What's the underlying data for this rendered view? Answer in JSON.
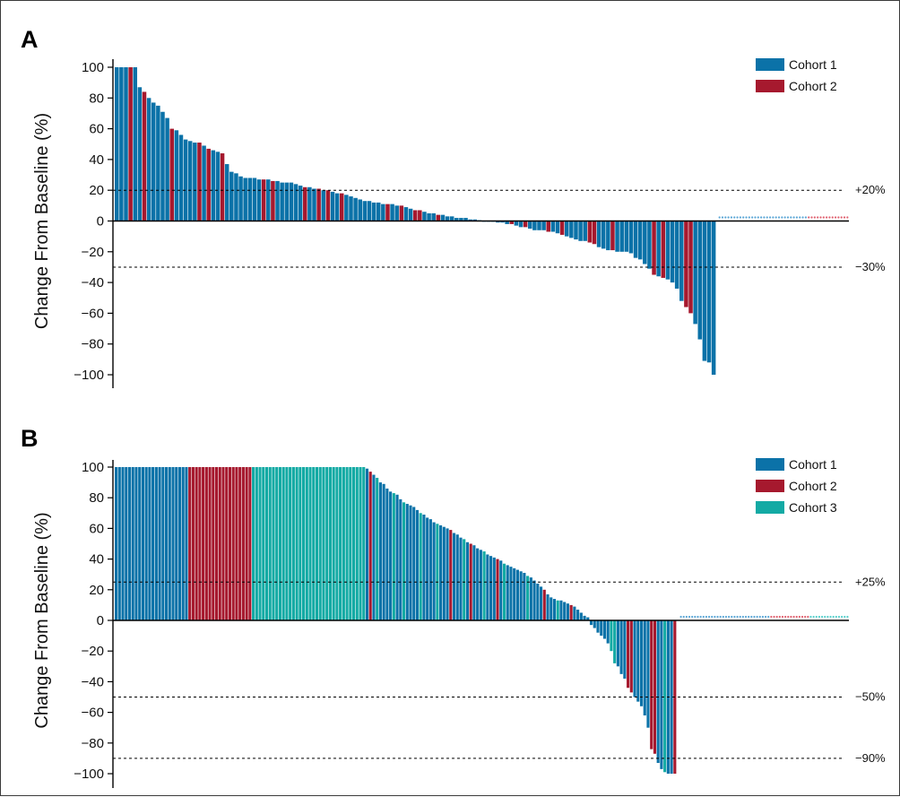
{
  "colors": {
    "cohort1": "#0b72a8",
    "cohort2": "#a6192e",
    "cohort3": "#13aaa4",
    "axis": "#000000",
    "reference": "#000000"
  },
  "chart_data": [
    {
      "type": "bar",
      "panel_label": "A",
      "ylabel": "Change From Baseline (%)",
      "ylim": [
        -100,
        100
      ],
      "yticks": [
        "100",
        "80",
        "60",
        "40",
        "20",
        "0",
        "−20",
        "−40",
        "−60",
        "−80",
        "−100"
      ],
      "reference_lines": [
        {
          "label": "+20%",
          "value": 20
        },
        {
          "label": "−30%",
          "value": -30
        }
      ],
      "legend": {
        "placement": "top-right",
        "entries": [
          "Cohort 1",
          "Cohort 2"
        ]
      },
      "series": [
        {
          "name": "Cohort 1",
          "color_key": "cohort1"
        },
        {
          "name": "Cohort 2",
          "color_key": "cohort2"
        }
      ],
      "bars": [
        [
          100,
          1
        ],
        [
          100,
          1
        ],
        [
          100,
          1
        ],
        [
          100,
          2
        ],
        [
          100,
          1
        ],
        [
          87,
          1
        ],
        [
          84,
          2
        ],
        [
          80,
          1
        ],
        [
          77,
          1
        ],
        [
          75,
          1
        ],
        [
          71,
          1
        ],
        [
          67,
          1
        ],
        [
          60,
          2
        ],
        [
          59,
          1
        ],
        [
          56,
          1
        ],
        [
          53,
          1
        ],
        [
          52,
          1
        ],
        [
          51,
          1
        ],
        [
          51,
          2
        ],
        [
          49,
          1
        ],
        [
          47,
          2
        ],
        [
          46,
          1
        ],
        [
          45,
          1
        ],
        [
          44,
          2
        ],
        [
          37,
          1
        ],
        [
          32,
          1
        ],
        [
          31,
          1
        ],
        [
          29,
          1
        ],
        [
          28,
          1
        ],
        [
          28,
          1
        ],
        [
          28,
          1
        ],
        [
          27,
          1
        ],
        [
          27,
          2
        ],
        [
          27,
          1
        ],
        [
          26,
          2
        ],
        [
          26,
          1
        ],
        [
          25,
          1
        ],
        [
          25,
          1
        ],
        [
          25,
          1
        ],
        [
          24,
          1
        ],
        [
          23,
          1
        ],
        [
          22,
          2
        ],
        [
          22,
          1
        ],
        [
          21,
          1
        ],
        [
          21,
          2
        ],
        [
          20,
          1
        ],
        [
          20,
          2
        ],
        [
          19,
          1
        ],
        [
          18,
          1
        ],
        [
          18,
          2
        ],
        [
          17,
          1
        ],
        [
          16,
          1
        ],
        [
          15,
          1
        ],
        [
          14,
          1
        ],
        [
          13,
          1
        ],
        [
          13,
          1
        ],
        [
          12,
          1
        ],
        [
          12,
          1
        ],
        [
          11,
          1
        ],
        [
          11,
          2
        ],
        [
          11,
          1
        ],
        [
          10,
          1
        ],
        [
          10,
          2
        ],
        [
          9,
          1
        ],
        [
          8,
          1
        ],
        [
          7,
          2
        ],
        [
          7,
          2
        ],
        [
          6,
          1
        ],
        [
          5,
          1
        ],
        [
          5,
          1
        ],
        [
          4,
          2
        ],
        [
          4,
          1
        ],
        [
          3,
          1
        ],
        [
          3,
          1
        ],
        [
          2,
          1
        ],
        [
          2,
          1
        ],
        [
          2,
          1
        ],
        [
          1,
          1
        ],
        [
          1,
          1
        ],
        [
          0.5,
          1
        ],
        [
          0,
          1
        ],
        [
          0,
          1
        ],
        [
          -0.5,
          1
        ],
        [
          -1,
          1
        ],
        [
          -1,
          1
        ],
        [
          -2,
          1
        ],
        [
          -2,
          2
        ],
        [
          -3,
          1
        ],
        [
          -4,
          1
        ],
        [
          -4,
          2
        ],
        [
          -5,
          1
        ],
        [
          -6,
          1
        ],
        [
          -6,
          1
        ],
        [
          -6,
          1
        ],
        [
          -7,
          2
        ],
        [
          -7,
          1
        ],
        [
          -8,
          1
        ],
        [
          -9,
          2
        ],
        [
          -10,
          1
        ],
        [
          -11,
          1
        ],
        [
          -12,
          1
        ],
        [
          -13,
          1
        ],
        [
          -13,
          1
        ],
        [
          -14,
          2
        ],
        [
          -15,
          2
        ],
        [
          -17,
          1
        ],
        [
          -18,
          1
        ],
        [
          -19,
          1
        ],
        [
          -19,
          2
        ],
        [
          -20,
          1
        ],
        [
          -20,
          1
        ],
        [
          -20,
          1
        ],
        [
          -21,
          1
        ],
        [
          -24,
          1
        ],
        [
          -25,
          1
        ],
        [
          -28,
          1
        ],
        [
          -31,
          1
        ],
        [
          -35,
          2
        ],
        [
          -36,
          1
        ],
        [
          -37,
          2
        ],
        [
          -38,
          1
        ],
        [
          -40,
          1
        ],
        [
          -44,
          1
        ],
        [
          -52,
          1
        ],
        [
          -56,
          2
        ],
        [
          -60,
          2
        ],
        [
          -67,
          1
        ],
        [
          -77,
          1
        ],
        [
          -91,
          1
        ],
        [
          -92,
          1
        ],
        [
          -100,
          1
        ]
      ],
      "unevaluable": {
        "cohort1_count": 30,
        "cohort2_count": 14
      }
    },
    {
      "type": "bar",
      "panel_label": "B",
      "ylabel": "Change From Baseline (%)",
      "ylim": [
        -100,
        100
      ],
      "yticks": [
        "100",
        "80",
        "60",
        "40",
        "20",
        "0",
        "−20",
        "−40",
        "−60",
        "−80",
        "−100"
      ],
      "reference_lines": [
        {
          "label": "+25%",
          "value": 25
        },
        {
          "label": "−50%",
          "value": -50
        },
        {
          "label": "−90%",
          "value": -90
        }
      ],
      "legend": {
        "placement": "top-right",
        "entries": [
          "Cohort 1",
          "Cohort 2",
          "Cohort 3"
        ]
      },
      "series": [
        {
          "name": "Cohort 1",
          "color_key": "cohort1"
        },
        {
          "name": "Cohort 2",
          "color_key": "cohort2"
        },
        {
          "name": "Cohort 3",
          "color_key": "cohort3"
        }
      ],
      "bars": [
        [
          100,
          1
        ],
        [
          100,
          1
        ],
        [
          100,
          1
        ],
        [
          100,
          1
        ],
        [
          100,
          1
        ],
        [
          100,
          1
        ],
        [
          100,
          1
        ],
        [
          100,
          1
        ],
        [
          100,
          1
        ],
        [
          100,
          1
        ],
        [
          100,
          1
        ],
        [
          100,
          1
        ],
        [
          100,
          1
        ],
        [
          100,
          1
        ],
        [
          100,
          1
        ],
        [
          100,
          1
        ],
        [
          100,
          1
        ],
        [
          100,
          1
        ],
        [
          100,
          1
        ],
        [
          100,
          1
        ],
        [
          100,
          1
        ],
        [
          100,
          1
        ],
        [
          100,
          2
        ],
        [
          100,
          2
        ],
        [
          100,
          2
        ],
        [
          100,
          2
        ],
        [
          100,
          2
        ],
        [
          100,
          2
        ],
        [
          100,
          2
        ],
        [
          100,
          2
        ],
        [
          100,
          2
        ],
        [
          100,
          2
        ],
        [
          100,
          2
        ],
        [
          100,
          2
        ],
        [
          100,
          2
        ],
        [
          100,
          2
        ],
        [
          100,
          2
        ],
        [
          100,
          2
        ],
        [
          100,
          2
        ],
        [
          100,
          2
        ],
        [
          100,
          2
        ],
        [
          100,
          3
        ],
        [
          100,
          3
        ],
        [
          100,
          3
        ],
        [
          100,
          3
        ],
        [
          100,
          3
        ],
        [
          100,
          3
        ],
        [
          100,
          3
        ],
        [
          100,
          3
        ],
        [
          100,
          3
        ],
        [
          100,
          3
        ],
        [
          100,
          3
        ],
        [
          100,
          3
        ],
        [
          100,
          3
        ],
        [
          100,
          3
        ],
        [
          100,
          3
        ],
        [
          100,
          3
        ],
        [
          100,
          3
        ],
        [
          100,
          3
        ],
        [
          100,
          3
        ],
        [
          100,
          3
        ],
        [
          100,
          3
        ],
        [
          100,
          3
        ],
        [
          100,
          3
        ],
        [
          100,
          3
        ],
        [
          100,
          3
        ],
        [
          100,
          3
        ],
        [
          100,
          3
        ],
        [
          100,
          3
        ],
        [
          100,
          3
        ],
        [
          100,
          3
        ],
        [
          100,
          3
        ],
        [
          100,
          3
        ],
        [
          100,
          3
        ],
        [
          100,
          3
        ],
        [
          99,
          1
        ],
        [
          97,
          2
        ],
        [
          95,
          1
        ],
        [
          93,
          3
        ],
        [
          90,
          1
        ],
        [
          89,
          1
        ],
        [
          86,
          1
        ],
        [
          84,
          1
        ],
        [
          83,
          3
        ],
        [
          82,
          1
        ],
        [
          79,
          1
        ],
        [
          77,
          3
        ],
        [
          76,
          1
        ],
        [
          75,
          1
        ],
        [
          74,
          1
        ],
        [
          72,
          1
        ],
        [
          70,
          3
        ],
        [
          69,
          1
        ],
        [
          67,
          1
        ],
        [
          66,
          1
        ],
        [
          64,
          1
        ],
        [
          63,
          3
        ],
        [
          62,
          1
        ],
        [
          61,
          1
        ],
        [
          60,
          1
        ],
        [
          59,
          2
        ],
        [
          57,
          1
        ],
        [
          56,
          1
        ],
        [
          54,
          1
        ],
        [
          53,
          3
        ],
        [
          51,
          1
        ],
        [
          50,
          2
        ],
        [
          49,
          1
        ],
        [
          47,
          1
        ],
        [
          46,
          1
        ],
        [
          45,
          3
        ],
        [
          43,
          1
        ],
        [
          42,
          1
        ],
        [
          41,
          1
        ],
        [
          40,
          2
        ],
        [
          39,
          1
        ],
        [
          37,
          3
        ],
        [
          36,
          1
        ],
        [
          35,
          1
        ],
        [
          34,
          1
        ],
        [
          33,
          1
        ],
        [
          32,
          1
        ],
        [
          31,
          1
        ],
        [
          29,
          3
        ],
        [
          28,
          1
        ],
        [
          26,
          1
        ],
        [
          24,
          1
        ],
        [
          22,
          1
        ],
        [
          20,
          2
        ],
        [
          17,
          1
        ],
        [
          15,
          1
        ],
        [
          14,
          1
        ],
        [
          13,
          3
        ],
        [
          13,
          1
        ],
        [
          12,
          1
        ],
        [
          11,
          1
        ],
        [
          10,
          2
        ],
        [
          9,
          1
        ],
        [
          7,
          1
        ],
        [
          5,
          1
        ],
        [
          3,
          1
        ],
        [
          2,
          1
        ],
        [
          -3,
          1
        ],
        [
          -5,
          1
        ],
        [
          -8,
          1
        ],
        [
          -10,
          1
        ],
        [
          -12,
          1
        ],
        [
          -15,
          1
        ],
        [
          -20,
          3
        ],
        [
          -28,
          3
        ],
        [
          -30,
          1
        ],
        [
          -35,
          1
        ],
        [
          -38,
          1
        ],
        [
          -44,
          2
        ],
        [
          -47,
          2
        ],
        [
          -50,
          1
        ],
        [
          -53,
          1
        ],
        [
          -56,
          1
        ],
        [
          -62,
          1
        ],
        [
          -70,
          1
        ],
        [
          -84,
          2
        ],
        [
          -87,
          2
        ],
        [
          -93,
          1
        ],
        [
          -97,
          1
        ],
        [
          -99,
          3
        ],
        [
          -100,
          1
        ],
        [
          -100,
          1
        ],
        [
          -100,
          2
        ]
      ],
      "unevaluable": {
        "cohort1_count": 32,
        "cohort2_count": 14,
        "cohort3_count": 14
      }
    }
  ]
}
